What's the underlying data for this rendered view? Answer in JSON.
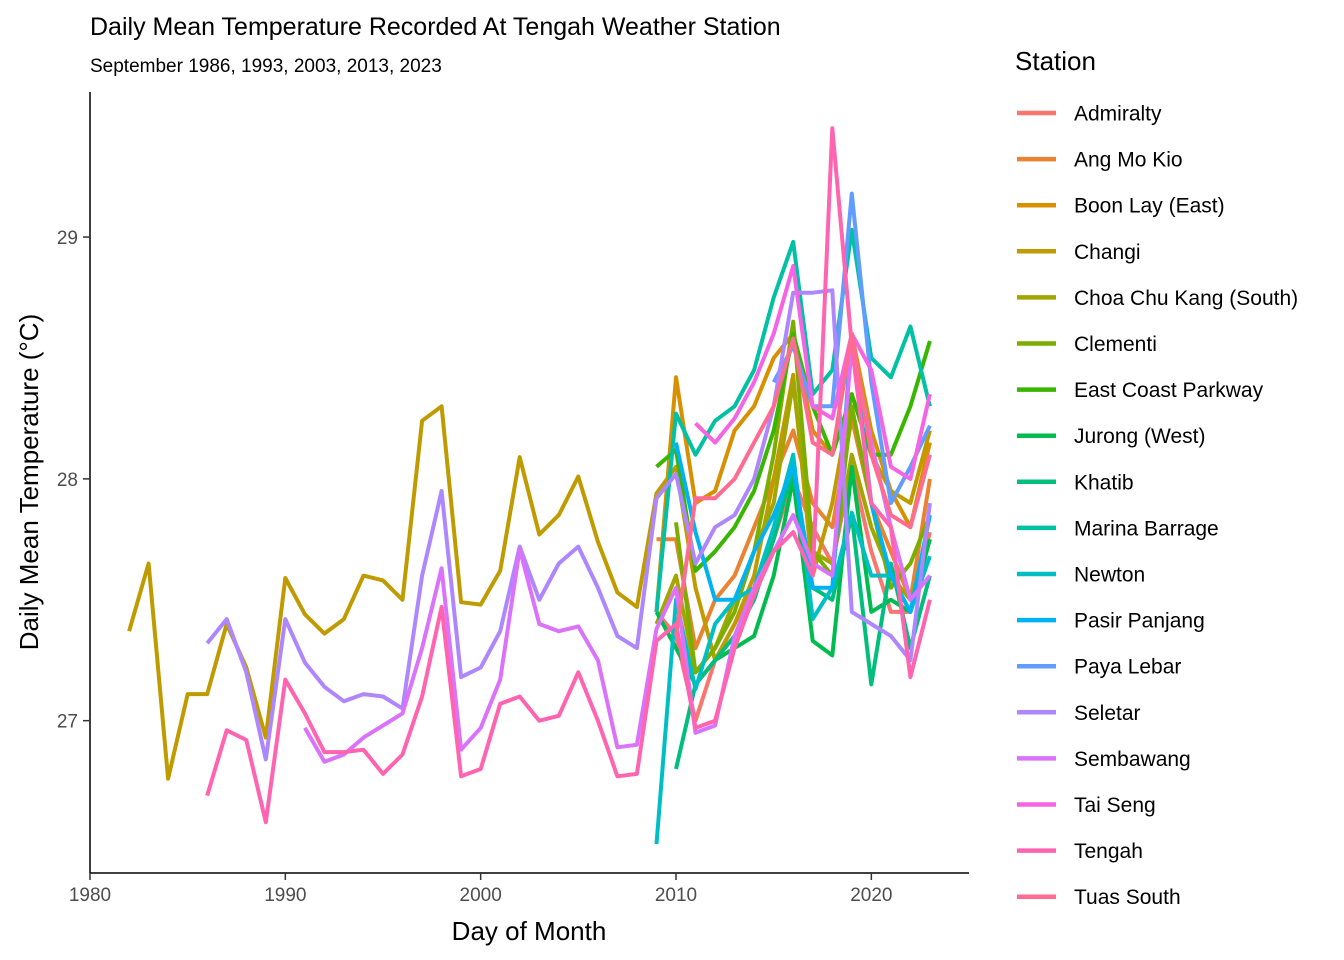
{
  "chart_data": {
    "type": "line",
    "title": "Daily Mean Temperature Recorded At Tengah Weather Station",
    "subtitle": "September 1986, 1993, 2003, 2013, 2023",
    "xlabel": "Day of Month",
    "ylabel": "Daily Mean Temperature (°C)",
    "xlim": [
      1980,
      2025
    ],
    "ylim": [
      26.37,
      29.6
    ],
    "xticks": [
      1980,
      1990,
      2000,
      2010,
      2020
    ],
    "yticks": [
      27,
      28,
      29
    ],
    "grid": false,
    "legend": {
      "title": "Station",
      "position": "right"
    },
    "series": [
      {
        "name": "Admiralty",
        "color": "#F8766D",
        "x": [
          2009,
          2010,
          2011,
          2012,
          2013,
          2014,
          2015,
          2016,
          2017,
          2018,
          2019,
          2020,
          2021,
          2022,
          2023
        ],
        "y": [
          27.45,
          27.35,
          27.0,
          27.25,
          27.4,
          27.55,
          27.75,
          28.0,
          27.8,
          27.65,
          28.05,
          27.7,
          27.45,
          27.45,
          27.78
        ]
      },
      {
        "name": "Ang Mo Kio",
        "color": "#EA8331",
        "x": [
          2009,
          2010,
          2011,
          2012,
          2013,
          2014,
          2015,
          2016,
          2017,
          2018,
          2019,
          2020,
          2021,
          2022,
          2023
        ],
        "y": [
          27.75,
          27.75,
          27.3,
          27.5,
          27.6,
          27.8,
          28.0,
          28.2,
          27.9,
          27.8,
          28.25,
          27.9,
          27.7,
          27.5,
          28.0
        ]
      },
      {
        "name": "Boon Lay (East)",
        "color": "#D89000",
        "x": [
          2009,
          2010,
          2011,
          2012,
          2013,
          2014,
          2015,
          2016,
          2017,
          2018,
          2019,
          2020,
          2021,
          2022,
          2023
        ],
        "y": [
          27.45,
          28.42,
          27.9,
          27.95,
          28.2,
          28.3,
          28.5,
          28.6,
          28.2,
          28.1,
          28.6,
          28.2,
          27.95,
          27.8,
          28.15
        ]
      },
      {
        "name": "Changi",
        "color": "#C09B00",
        "x": [
          1982,
          1983,
          1984,
          1985,
          1986,
          1987,
          1988,
          1989,
          1990,
          1991,
          1992,
          1993,
          1994,
          1995,
          1996,
          1997,
          1998,
          1999,
          2000,
          2001,
          2002,
          2003,
          2004,
          2005,
          2006,
          2007,
          2008,
          2009,
          2010,
          2011,
          2012,
          2013,
          2014,
          2015,
          2016,
          2017,
          2018,
          2019,
          2020,
          2021,
          2022,
          2023
        ],
        "y": [
          27.37,
          27.65,
          26.76,
          27.11,
          27.11,
          27.4,
          27.22,
          26.93,
          27.59,
          27.44,
          27.36,
          27.42,
          27.6,
          27.58,
          27.5,
          28.24,
          28.3,
          27.49,
          27.48,
          27.62,
          28.09,
          27.77,
          27.85,
          28.01,
          27.74,
          27.53,
          27.47,
          27.94,
          28.05,
          27.55,
          27.25,
          27.4,
          27.6,
          28.0,
          28.43,
          27.6,
          27.9,
          28.35,
          28.1,
          27.95,
          27.9,
          28.2
        ]
      },
      {
        "name": "Choa Chu Kang (South)",
        "color": "#A3A500",
        "x": [
          2009,
          2010,
          2011,
          2012,
          2013,
          2014,
          2015,
          2016,
          2017,
          2018,
          2019,
          2020,
          2021,
          2022,
          2023
        ],
        "y": [
          27.4,
          27.6,
          27.2,
          27.3,
          27.5,
          27.7,
          27.9,
          28.4,
          27.7,
          27.65,
          28.1,
          27.8,
          27.6,
          27.5,
          27.75
        ]
      },
      {
        "name": "Clementi",
        "color": "#7CAE00",
        "x": [
          2010,
          2011,
          2012,
          2013,
          2014,
          2015,
          2016,
          2017,
          2018,
          2019,
          2020,
          2021,
          2022,
          2023
        ],
        "y": [
          27.82,
          27.2,
          27.3,
          27.45,
          27.7,
          28.1,
          28.65,
          27.7,
          27.6,
          28.3,
          27.9,
          27.55,
          27.65,
          27.85
        ]
      },
      {
        "name": "East Coast Parkway",
        "color": "#39B600",
        "x": [
          2009,
          2010,
          2011,
          2012,
          2013,
          2014,
          2015,
          2016,
          2017,
          2018,
          2019,
          2020,
          2021,
          2022,
          2023
        ],
        "y": [
          28.05,
          28.12,
          27.62,
          27.7,
          27.8,
          27.95,
          28.2,
          28.6,
          28.3,
          28.1,
          28.35,
          28.1,
          28.1,
          28.3,
          28.57
        ]
      },
      {
        "name": "Jurong (West)",
        "color": "#00BB4E",
        "x": [
          2009,
          2010,
          2011,
          2012,
          2013,
          2014,
          2015,
          2016,
          2017,
          2018,
          2019,
          2020,
          2021,
          2022,
          2023
        ],
        "y": [
          27.45,
          27.3,
          27.15,
          27.25,
          27.3,
          27.35,
          27.6,
          28.0,
          27.33,
          27.27,
          28.05,
          27.45,
          27.5,
          27.45,
          27.75
        ]
      },
      {
        "name": "Khatib",
        "color": "#00BF7D",
        "x": [
          2010,
          2011,
          2012,
          2013,
          2014,
          2015,
          2016,
          2017,
          2018,
          2019,
          2020,
          2021,
          2022,
          2023
        ],
        "y": [
          26.8,
          27.15,
          27.25,
          27.35,
          27.5,
          27.75,
          28.05,
          27.55,
          27.5,
          27.85,
          27.15,
          27.65,
          27.3,
          27.6
        ]
      },
      {
        "name": "Marina Barrage",
        "color": "#00C1A3",
        "x": [
          2009,
          2010,
          2011,
          2012,
          2013,
          2014,
          2015,
          2016,
          2017,
          2018,
          2019,
          2020,
          2021,
          2022,
          2023
        ],
        "y": [
          27.45,
          28.27,
          28.1,
          28.24,
          28.3,
          28.45,
          28.75,
          28.98,
          28.35,
          28.45,
          29.03,
          28.5,
          28.42,
          28.63,
          28.3
        ]
      },
      {
        "name": "Newton",
        "color": "#00BFC4",
        "x": [
          2009,
          2010,
          2011,
          2012,
          2013,
          2014,
          2015,
          2016,
          2017,
          2018,
          2019,
          2020,
          2021,
          2022,
          2023
        ],
        "y": [
          26.49,
          27.5,
          27.13,
          27.4,
          27.5,
          27.55,
          27.8,
          28.1,
          27.42,
          27.55,
          27.86,
          27.6,
          27.6,
          27.45,
          27.68
        ]
      },
      {
        "name": "Pasir Panjang",
        "color": "#00B2F3",
        "x": [
          2010,
          2011,
          2012,
          2013,
          2014,
          2015,
          2016,
          2017,
          2018,
          2019,
          2020,
          2021,
          2022,
          2023
        ],
        "y": [
          28.15,
          27.78,
          27.5,
          27.5,
          27.7,
          27.85,
          28.05,
          27.55,
          27.55,
          28.6,
          27.9,
          27.6,
          27.45,
          27.85
        ]
      },
      {
        "name": "Paya Lebar",
        "color": "#619CFF",
        "x": [
          2015,
          2016,
          2017,
          2018,
          2019,
          2020,
          2021,
          2022,
          2023
        ],
        "y": [
          28.4,
          28.55,
          28.3,
          28.3,
          29.18,
          28.4,
          27.9,
          28.05,
          28.22
        ]
      },
      {
        "name": "Seletar",
        "color": "#AE87FF",
        "x": [
          1986,
          1987,
          1988,
          1989,
          1990,
          1991,
          1992,
          1993,
          1994,
          1995,
          1996,
          1997,
          1998,
          1999,
          2000,
          2001,
          2002,
          2003,
          2004,
          2005,
          2006,
          2007,
          2008,
          2009,
          2010,
          2011,
          2012,
          2013,
          2014,
          2015,
          2016,
          2017,
          2018,
          2019,
          2020,
          2021,
          2022,
          2023
        ],
        "y": [
          27.32,
          27.42,
          27.2,
          26.84,
          27.42,
          27.24,
          27.14,
          27.08,
          27.11,
          27.1,
          27.05,
          27.6,
          27.95,
          27.18,
          27.22,
          27.37,
          27.72,
          27.5,
          27.65,
          27.72,
          27.55,
          27.35,
          27.3,
          27.92,
          28.02,
          27.65,
          27.8,
          27.85,
          28.0,
          28.3,
          28.77,
          28.77,
          28.78,
          27.45,
          27.4,
          27.35,
          27.25,
          27.9
        ]
      },
      {
        "name": "Sembawang",
        "color": "#DB72FB",
        "x": [
          1991,
          1992,
          1993,
          1994,
          1995,
          1996,
          1997,
          1998,
          1999,
          2000,
          2001,
          2002,
          2003,
          2004,
          2005,
          2006,
          2007,
          2008,
          2009,
          2010,
          2011,
          2012,
          2013,
          2014,
          2015,
          2016,
          2017,
          2018,
          2019,
          2020,
          2021,
          2022,
          2023
        ],
        "y": [
          26.97,
          26.83,
          26.86,
          26.93,
          26.98,
          27.03,
          27.3,
          27.63,
          26.88,
          26.97,
          27.17,
          27.71,
          27.4,
          27.37,
          27.39,
          27.25,
          26.89,
          26.9,
          27.38,
          27.55,
          26.95,
          26.98,
          27.35,
          27.55,
          27.7,
          27.85,
          27.65,
          27.6,
          28.55,
          28.15,
          27.8,
          27.5,
          27.6
        ]
      },
      {
        "name": "Tai Seng",
        "color": "#F564E3",
        "x": [
          2011,
          2012,
          2013,
          2014,
          2015,
          2016,
          2017,
          2018,
          2019,
          2020,
          2021,
          2022,
          2023
        ],
        "y": [
          28.23,
          28.15,
          28.25,
          28.4,
          28.6,
          28.88,
          28.3,
          28.25,
          28.6,
          28.45,
          28.05,
          28.0,
          28.35
        ]
      },
      {
        "name": "Tengah",
        "color": "#FF64B0",
        "x": [
          1986,
          1987,
          1988,
          1989,
          1990,
          1991,
          1992,
          1993,
          1994,
          1995,
          1996,
          1997,
          1998,
          1999,
          2000,
          2001,
          2002,
          2003,
          2004,
          2005,
          2006,
          2007,
          2008,
          2009,
          2010,
          2011,
          2012,
          2013,
          2014,
          2015,
          2016,
          2017,
          2018,
          2019,
          2020,
          2021,
          2022,
          2023
        ],
        "y": [
          26.69,
          26.96,
          26.92,
          26.58,
          27.17,
          27.03,
          26.87,
          26.87,
          26.88,
          26.78,
          26.86,
          27.1,
          27.47,
          26.77,
          26.8,
          27.07,
          27.1,
          27.0,
          27.02,
          27.2,
          27.0,
          26.77,
          26.78,
          27.33,
          27.4,
          26.97,
          27.0,
          27.3,
          27.52,
          27.7,
          27.78,
          27.6,
          29.45,
          28.55,
          27.9,
          27.8,
          27.18,
          27.5
        ]
      },
      {
        "name": "Tuas South",
        "color": "#FF6C91",
        "x": [
          2010,
          2011,
          2012,
          2013,
          2014,
          2015,
          2016,
          2017,
          2018,
          2019,
          2020,
          2021,
          2022,
          2023
        ],
        "y": [
          27.35,
          27.92,
          27.92,
          28.0,
          28.15,
          28.3,
          28.58,
          28.15,
          28.1,
          28.6,
          28.1,
          27.85,
          27.8,
          28.1
        ]
      }
    ]
  }
}
